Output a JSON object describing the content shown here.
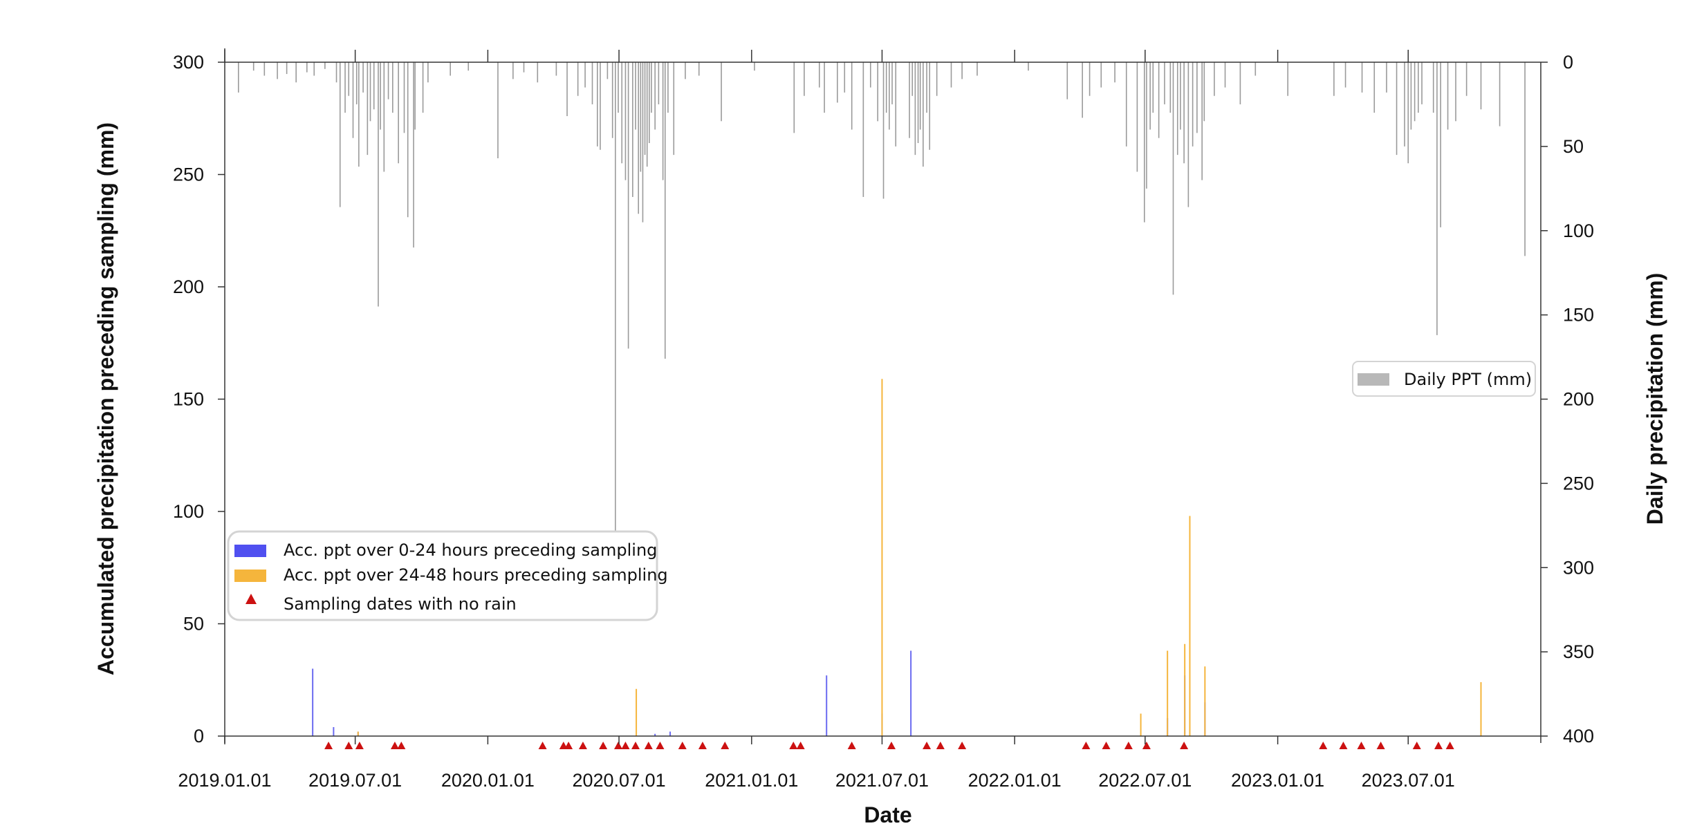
{
  "chart_data": {
    "type": "bar",
    "xlabel": "Date",
    "ylabel_left": "Accumulated precipitation preceding sampling (mm)",
    "ylabel_right": "Daily precipitation (mm)",
    "xlim": [
      "2019-01-01",
      "2024-01-01"
    ],
    "ylim_left": [
      0,
      300
    ],
    "ylim_right_inverted": [
      0,
      400
    ],
    "x_ticks": [
      "2019.01.01",
      "2019.07.01",
      "2020.01.01",
      "2020.07.01",
      "2021.01.01",
      "2021.07.01",
      "2022.01.01",
      "2022.07.01",
      "2023.01.01",
      "2023.07.01"
    ],
    "y_ticks_left": [
      0,
      50,
      100,
      150,
      200,
      250,
      300
    ],
    "y_ticks_right": [
      0,
      50,
      100,
      150,
      200,
      250,
      300,
      350,
      400
    ],
    "legend_right": {
      "position": "right-middle",
      "entries": [
        {
          "label": "Daily PPT (mm)",
          "color": "#b8b8b8"
        }
      ]
    },
    "legend_left": {
      "position": "lower-left",
      "entries": [
        {
          "label": "Acc. ppt over 0-24 hours preceding sampling",
          "color": "#5050f0",
          "shape": "rect"
        },
        {
          "label": "Acc. ppt over 24-48 hours preceding sampling",
          "color": "#f5b53c",
          "shape": "rect"
        },
        {
          "label": "Sampling dates with no rain",
          "color": "#cc1111",
          "shape": "triangle"
        }
      ]
    },
    "series": [
      {
        "name": "Acc. ppt over 0-24 hours preceding sampling",
        "axis": "left",
        "color": "#6a6af0",
        "points": [
          [
            "2019-05-03",
            30
          ],
          [
            "2019-06-01",
            4
          ],
          [
            "2019-07-05",
            2
          ],
          [
            "2020-08-20",
            1
          ],
          [
            "2020-09-10",
            2
          ],
          [
            "2021-04-15",
            27
          ],
          [
            "2021-07-01",
            10
          ],
          [
            "2021-08-10",
            38
          ],
          [
            "2022-08-01",
            8
          ],
          [
            "2022-08-25",
            27
          ],
          [
            "2022-09-22",
            15
          ]
        ]
      },
      {
        "name": "Acc. ppt over 24-48 hours preceding sampling",
        "axis": "left",
        "color": "#f5b53c",
        "points": [
          [
            "2019-07-05",
            2
          ],
          [
            "2020-07-25",
            21
          ],
          [
            "2021-07-01",
            159
          ],
          [
            "2022-06-25",
            10
          ],
          [
            "2022-08-01",
            38
          ],
          [
            "2022-08-25",
            41
          ],
          [
            "2022-09-01",
            98
          ],
          [
            "2022-09-22",
            31
          ],
          [
            "2023-10-10",
            24
          ]
        ]
      },
      {
        "name": "Daily PPT (mm)",
        "axis": "right",
        "color": "#9a9a9a",
        "points": [
          [
            "2019-01-20",
            18
          ],
          [
            "2019-02-10",
            5
          ],
          [
            "2019-02-25",
            8
          ],
          [
            "2019-03-15",
            10
          ],
          [
            "2019-03-28",
            7
          ],
          [
            "2019-04-10",
            12
          ],
          [
            "2019-04-25",
            6
          ],
          [
            "2019-05-05",
            8
          ],
          [
            "2019-05-20",
            4
          ],
          [
            "2019-06-05",
            12
          ],
          [
            "2019-06-10",
            86
          ],
          [
            "2019-06-17",
            30
          ],
          [
            "2019-06-22",
            20
          ],
          [
            "2019-06-28",
            45
          ],
          [
            "2019-07-03",
            25
          ],
          [
            "2019-07-06",
            62
          ],
          [
            "2019-07-12",
            18
          ],
          [
            "2019-07-18",
            55
          ],
          [
            "2019-07-22",
            35
          ],
          [
            "2019-07-27",
            28
          ],
          [
            "2019-08-02",
            145
          ],
          [
            "2019-08-05",
            40
          ],
          [
            "2019-08-10",
            65
          ],
          [
            "2019-08-16",
            22
          ],
          [
            "2019-08-22",
            30
          ],
          [
            "2019-08-30",
            60
          ],
          [
            "2019-09-07",
            42
          ],
          [
            "2019-09-12",
            92
          ],
          [
            "2019-09-20",
            110
          ],
          [
            "2019-09-22",
            40
          ],
          [
            "2019-10-03",
            30
          ],
          [
            "2019-10-10",
            12
          ],
          [
            "2019-11-10",
            8
          ],
          [
            "2019-12-05",
            5
          ],
          [
            "2020-01-15",
            57
          ],
          [
            "2020-02-05",
            10
          ],
          [
            "2020-02-20",
            6
          ],
          [
            "2020-03-10",
            12
          ],
          [
            "2020-04-05",
            8
          ],
          [
            "2020-04-20",
            32
          ],
          [
            "2020-05-05",
            20
          ],
          [
            "2020-05-15",
            15
          ],
          [
            "2020-05-25",
            25
          ],
          [
            "2020-06-01",
            50
          ],
          [
            "2020-06-05",
            52
          ],
          [
            "2020-06-15",
            10
          ],
          [
            "2020-06-22",
            45
          ],
          [
            "2020-06-26",
            280
          ],
          [
            "2020-06-30",
            30
          ],
          [
            "2020-07-05",
            60
          ],
          [
            "2020-07-10",
            70
          ],
          [
            "2020-07-14",
            170
          ],
          [
            "2020-07-20",
            80
          ],
          [
            "2020-07-24",
            40
          ],
          [
            "2020-07-28",
            90
          ],
          [
            "2020-07-31",
            65
          ],
          [
            "2020-08-03",
            95
          ],
          [
            "2020-08-06",
            55
          ],
          [
            "2020-08-09",
            62
          ],
          [
            "2020-08-12",
            48
          ],
          [
            "2020-08-15",
            30
          ],
          [
            "2020-08-20",
            40
          ],
          [
            "2020-08-25",
            25
          ],
          [
            "2020-08-31",
            70
          ],
          [
            "2020-09-03",
            176
          ],
          [
            "2020-09-07",
            30
          ],
          [
            "2020-09-15",
            55
          ],
          [
            "2020-10-01",
            10
          ],
          [
            "2020-10-20",
            8
          ],
          [
            "2020-11-20",
            35
          ],
          [
            "2021-01-05",
            5
          ],
          [
            "2021-03-01",
            42
          ],
          [
            "2021-03-15",
            20
          ],
          [
            "2021-04-05",
            15
          ],
          [
            "2021-04-12",
            30
          ],
          [
            "2021-04-30",
            24
          ],
          [
            "2021-05-10",
            18
          ],
          [
            "2021-05-20",
            40
          ],
          [
            "2021-06-05",
            80
          ],
          [
            "2021-06-15",
            15
          ],
          [
            "2021-06-25",
            35
          ],
          [
            "2021-07-03",
            81
          ],
          [
            "2021-07-07",
            30
          ],
          [
            "2021-07-11",
            40
          ],
          [
            "2021-07-15",
            25
          ],
          [
            "2021-07-20",
            50
          ],
          [
            "2021-08-08",
            45
          ],
          [
            "2021-08-12",
            20
          ],
          [
            "2021-08-16",
            55
          ],
          [
            "2021-08-20",
            48
          ],
          [
            "2021-08-23",
            40
          ],
          [
            "2021-08-27",
            62
          ],
          [
            "2021-09-01",
            30
          ],
          [
            "2021-09-05",
            52
          ],
          [
            "2021-09-15",
            20
          ],
          [
            "2021-10-05",
            15
          ],
          [
            "2021-10-20",
            10
          ],
          [
            "2021-11-10",
            8
          ],
          [
            "2022-01-20",
            5
          ],
          [
            "2022-03-15",
            22
          ],
          [
            "2022-04-05",
            33
          ],
          [
            "2022-04-15",
            20
          ],
          [
            "2022-05-01",
            15
          ],
          [
            "2022-05-20",
            12
          ],
          [
            "2022-06-05",
            50
          ],
          [
            "2022-06-20",
            65
          ],
          [
            "2022-06-30",
            95
          ],
          [
            "2022-07-03",
            75
          ],
          [
            "2022-07-08",
            40
          ],
          [
            "2022-07-12",
            30
          ],
          [
            "2022-07-20",
            45
          ],
          [
            "2022-07-28",
            25
          ],
          [
            "2022-08-05",
            30
          ],
          [
            "2022-08-09",
            138
          ],
          [
            "2022-08-15",
            55
          ],
          [
            "2022-08-19",
            40
          ],
          [
            "2022-08-24",
            60
          ],
          [
            "2022-08-30",
            86
          ],
          [
            "2022-09-05",
            50
          ],
          [
            "2022-09-11",
            42
          ],
          [
            "2022-09-18",
            70
          ],
          [
            "2022-09-21",
            35
          ],
          [
            "2022-10-05",
            20
          ],
          [
            "2022-10-20",
            15
          ],
          [
            "2022-11-10",
            25
          ],
          [
            "2022-12-01",
            8
          ],
          [
            "2023-01-15",
            20
          ],
          [
            "2023-03-20",
            20
          ],
          [
            "2023-04-05",
            15
          ],
          [
            "2023-04-28",
            18
          ],
          [
            "2023-05-15",
            30
          ],
          [
            "2023-06-01",
            18
          ],
          [
            "2023-06-15",
            55
          ],
          [
            "2023-06-26",
            50
          ],
          [
            "2023-07-01",
            60
          ],
          [
            "2023-07-05",
            40
          ],
          [
            "2023-07-10",
            35
          ],
          [
            "2023-07-15",
            30
          ],
          [
            "2023-07-20",
            25
          ],
          [
            "2023-08-05",
            30
          ],
          [
            "2023-08-10",
            162
          ],
          [
            "2023-08-15",
            98
          ],
          [
            "2023-08-25",
            40
          ],
          [
            "2023-09-05",
            35
          ],
          [
            "2023-09-20",
            20
          ],
          [
            "2023-10-10",
            28
          ],
          [
            "2023-11-05",
            38
          ],
          [
            "2023-12-10",
            115
          ]
        ]
      },
      {
        "name": "Sampling dates with no rain",
        "axis": "left",
        "color": "#cc1111",
        "marker": "triangle",
        "dates": [
          "2019-05-25",
          "2019-06-22",
          "2019-07-07",
          "2019-08-25",
          "2019-09-03",
          "2020-03-17",
          "2020-04-15",
          "2020-04-22",
          "2020-05-12",
          "2020-06-09",
          "2020-06-30",
          "2020-07-10",
          "2020-07-24",
          "2020-08-11",
          "2020-08-27",
          "2020-09-27",
          "2020-10-25",
          "2020-11-25",
          "2021-02-28",
          "2021-03-10",
          "2021-05-20",
          "2021-07-14",
          "2021-09-01",
          "2021-09-20",
          "2021-10-20",
          "2022-04-10",
          "2022-05-08",
          "2022-06-08",
          "2022-07-03",
          "2022-08-24",
          "2023-03-05",
          "2023-04-02",
          "2023-04-27",
          "2023-05-24",
          "2023-07-13",
          "2023-08-12",
          "2023-08-28"
        ]
      }
    ]
  }
}
